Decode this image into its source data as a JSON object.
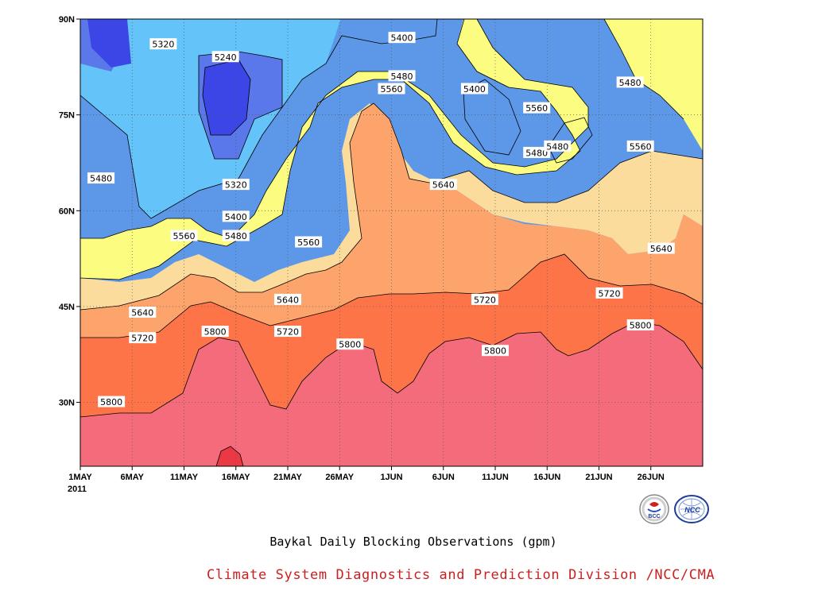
{
  "chart_data": {
    "type": "heatmap",
    "subtype": "filled-contour",
    "title": "Baykal Daily Blocking Observations (gpm)",
    "variable_unit": "gpm",
    "x_axis": {
      "labels": [
        "1MAY",
        "6MAY",
        "11MAY",
        "16MAY",
        "21MAY",
        "26MAY",
        "1JUN",
        "6JUN",
        "11JUN",
        "16JUN",
        "21JUN",
        "26JUN"
      ],
      "year_label": "2011",
      "range": [
        "2011-05-01",
        "2011-06-30"
      ]
    },
    "y_axis": {
      "labels": [
        "30N",
        "45N",
        "60N",
        "75N",
        "90N"
      ],
      "range": [
        20,
        90
      ]
    },
    "contour_levels": [
      5240,
      5320,
      5400,
      5480,
      5560,
      5640,
      5720,
      5800
    ],
    "bands": [
      {
        "min": 5160,
        "max": 5240,
        "color": "#0f14d8"
      },
      {
        "min": 5240,
        "max": 5320,
        "color": "#3c46e6"
      },
      {
        "min": 5320,
        "max": 5400,
        "color": "#5a78ea"
      },
      {
        "min": 5400,
        "max": 5480,
        "color": "#5d98e8"
      },
      {
        "min": 5480,
        "max": 5560,
        "color": "#64c4fa"
      },
      {
        "min": 5560,
        "max": 5640,
        "color": "#fcfc80"
      },
      {
        "min": 5640,
        "max": 5720,
        "color": "#fcdc9c"
      },
      {
        "min": 5720,
        "max": 5800,
        "color": "#fca46c"
      },
      {
        "min": 5800,
        "max": 5880,
        "color": "#fc7448"
      },
      {
        "min": 5880,
        "max": 5960,
        "color": "#f46c7c"
      },
      {
        "min": 5960,
        "max": 6040,
        "color": "#ec3844"
      }
    ],
    "annotations": [
      {
        "text": "5320",
        "date": "2011-05-09",
        "lat": 86
      },
      {
        "text": "5240",
        "date": "2011-05-15",
        "lat": 84
      },
      {
        "text": "5480",
        "date": "2011-05-03",
        "lat": 65
      },
      {
        "text": "5320",
        "date": "2011-05-16",
        "lat": 64
      },
      {
        "text": "5400",
        "date": "2011-05-16",
        "lat": 59
      },
      {
        "text": "5560",
        "date": "2011-05-11",
        "lat": 56
      },
      {
        "text": "5480",
        "date": "2011-05-16",
        "lat": 56
      },
      {
        "text": "5560",
        "date": "2011-05-23",
        "lat": 55
      },
      {
        "text": "5400",
        "date": "2011-06-01",
        "lat": 87
      },
      {
        "text": "5480",
        "date": "2011-06-01",
        "lat": 81
      },
      {
        "text": "5560",
        "date": "2011-05-31",
        "lat": 79
      },
      {
        "text": "5400",
        "date": "2011-06-08",
        "lat": 79
      },
      {
        "text": "5560",
        "date": "2011-06-14",
        "lat": 76
      },
      {
        "text": "5480",
        "date": "2011-06-23",
        "lat": 80
      },
      {
        "text": "5480",
        "date": "2011-06-14",
        "lat": 69
      },
      {
        "text": "5480",
        "date": "2011-06-16",
        "lat": 70
      },
      {
        "text": "5640",
        "date": "2011-06-05",
        "lat": 64
      },
      {
        "text": "5560",
        "date": "2011-06-24",
        "lat": 70
      },
      {
        "text": "5640",
        "date": "2011-05-21",
        "lat": 46
      },
      {
        "text": "5640",
        "date": "2011-05-07",
        "lat": 44
      },
      {
        "text": "5720",
        "date": "2011-05-07",
        "lat": 40
      },
      {
        "text": "5720",
        "date": "2011-05-21",
        "lat": 41
      },
      {
        "text": "5800",
        "date": "2011-05-14",
        "lat": 41
      },
      {
        "text": "5800",
        "date": "2011-05-27",
        "lat": 39
      },
      {
        "text": "5720",
        "date": "2011-06-09",
        "lat": 46
      },
      {
        "text": "5800",
        "date": "2011-06-10",
        "lat": 38
      },
      {
        "text": "5720",
        "date": "2011-06-21",
        "lat": 47
      },
      {
        "text": "5640",
        "date": "2011-06-26",
        "lat": 54
      },
      {
        "text": "5800",
        "date": "2011-06-24",
        "lat": 42
      },
      {
        "text": "5800",
        "date": "2011-05-04",
        "lat": 30
      }
    ]
  },
  "caption": "Baykal Daily Blocking Observations (gpm)",
  "credit": "Climate System Diagnostics and Prediction Division /NCC/CMA",
  "logos": {
    "left": {
      "text": "BCC"
    },
    "right": {
      "text": "NCC"
    }
  }
}
